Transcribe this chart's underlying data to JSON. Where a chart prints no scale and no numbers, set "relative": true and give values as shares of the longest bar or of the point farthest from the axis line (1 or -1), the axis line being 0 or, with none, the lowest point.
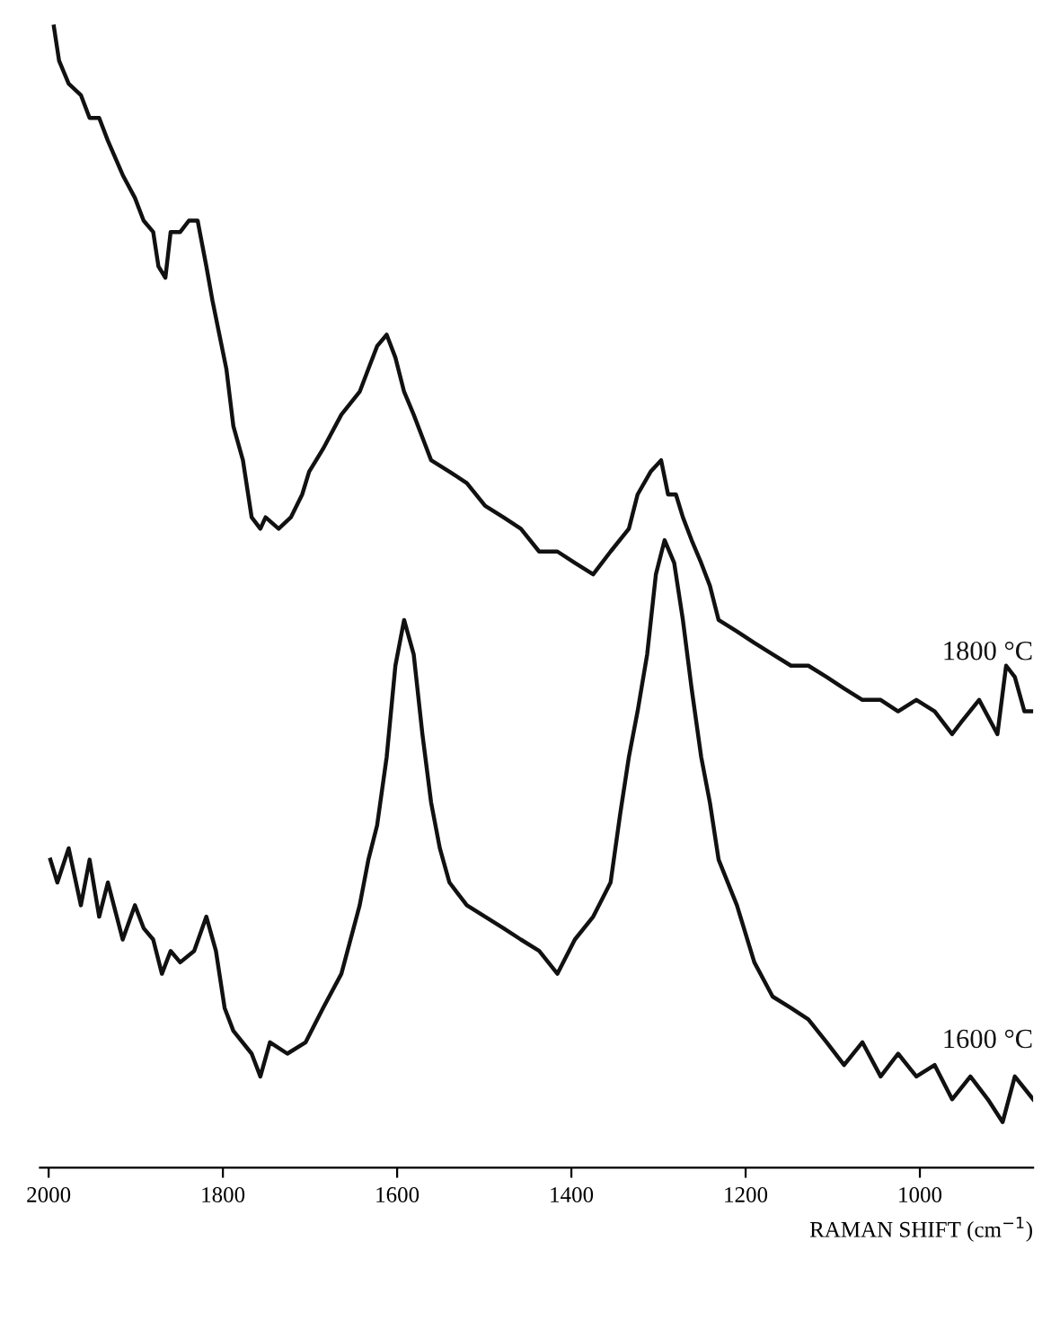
{
  "chart_data": {
    "type": "line",
    "relative": true,
    "xlabel": "RAMAN SHIFT (cm$^{−1}$)",
    "xlim": [
      2010,
      870
    ],
    "xticks": [
      2000,
      1800,
      1600,
      1400,
      1200,
      1000
    ],
    "tick_labels": "x",
    "grid": false,
    "legend": false,
    "marker": "none",
    "line_style": "solid",
    "series": [
      {
        "name": "1800 °C",
        "color": "#111111",
        "x": [
          1994,
          1988,
          1977,
          1963,
          1953,
          1942,
          1932,
          1915,
          1901,
          1891,
          1880,
          1874,
          1866,
          1860,
          1849,
          1839,
          1829,
          1819,
          1812,
          1804,
          1796,
          1788,
          1777,
          1767,
          1757,
          1751,
          1736,
          1722,
          1709,
          1701,
          1685,
          1664,
          1643,
          1633,
          1623,
          1612,
          1602,
          1592,
          1581,
          1571,
          1561,
          1540,
          1520,
          1499,
          1478,
          1458,
          1437,
          1416,
          1396,
          1375,
          1355,
          1334,
          1324,
          1309,
          1297,
          1289,
          1280,
          1272,
          1262,
          1251,
          1241,
          1231,
          1210,
          1190,
          1169,
          1148,
          1128,
          1107,
          1087,
          1066,
          1045,
          1025,
          1004,
          983,
          963,
          953,
          932,
          911,
          901,
          891,
          880,
          870
        ],
        "values": [
          1.0,
          0.97,
          0.95,
          0.94,
          0.92,
          0.92,
          0.9,
          0.87,
          0.85,
          0.83,
          0.82,
          0.79,
          0.78,
          0.82,
          0.82,
          0.83,
          0.83,
          0.79,
          0.76,
          0.73,
          0.7,
          0.65,
          0.62,
          0.57,
          0.56,
          0.57,
          0.56,
          0.57,
          0.59,
          0.61,
          0.63,
          0.66,
          0.68,
          0.7,
          0.72,
          0.73,
          0.71,
          0.68,
          0.66,
          0.64,
          0.62,
          0.61,
          0.6,
          0.58,
          0.57,
          0.56,
          0.54,
          0.54,
          0.53,
          0.52,
          0.54,
          0.56,
          0.59,
          0.61,
          0.62,
          0.59,
          0.59,
          0.57,
          0.55,
          0.53,
          0.51,
          0.48,
          0.47,
          0.46,
          0.45,
          0.44,
          0.44,
          0.43,
          0.42,
          0.41,
          0.41,
          0.4,
          0.41,
          0.4,
          0.38,
          0.39,
          0.41,
          0.38,
          0.44,
          0.43,
          0.4,
          0.4
        ]
      },
      {
        "name": "1600 °C",
        "color": "#111111",
        "x": [
          1998,
          1990,
          1977,
          1963,
          1953,
          1942,
          1932,
          1915,
          1901,
          1891,
          1880,
          1870,
          1860,
          1849,
          1833,
          1819,
          1808,
          1798,
          1788,
          1767,
          1757,
          1746,
          1726,
          1705,
          1685,
          1664,
          1643,
          1633,
          1623,
          1612,
          1602,
          1592,
          1581,
          1571,
          1561,
          1551,
          1540,
          1520,
          1499,
          1478,
          1458,
          1437,
          1416,
          1396,
          1375,
          1355,
          1344,
          1334,
          1324,
          1313,
          1303,
          1293,
          1282,
          1272,
          1262,
          1251,
          1241,
          1231,
          1210,
          1190,
          1169,
          1148,
          1128,
          1107,
          1087,
          1066,
          1045,
          1025,
          1004,
          983,
          963,
          942,
          922,
          905,
          891,
          870
        ],
        "values": [
          0.27,
          0.25,
          0.28,
          0.23,
          0.27,
          0.22,
          0.25,
          0.2,
          0.23,
          0.21,
          0.2,
          0.17,
          0.19,
          0.18,
          0.19,
          0.22,
          0.19,
          0.14,
          0.12,
          0.1,
          0.08,
          0.11,
          0.1,
          0.11,
          0.14,
          0.17,
          0.23,
          0.27,
          0.3,
          0.36,
          0.44,
          0.48,
          0.45,
          0.38,
          0.32,
          0.28,
          0.25,
          0.23,
          0.22,
          0.21,
          0.2,
          0.19,
          0.17,
          0.2,
          0.22,
          0.25,
          0.31,
          0.36,
          0.4,
          0.45,
          0.52,
          0.55,
          0.53,
          0.48,
          0.42,
          0.36,
          0.32,
          0.27,
          0.23,
          0.18,
          0.15,
          0.14,
          0.13,
          0.11,
          0.09,
          0.11,
          0.08,
          0.1,
          0.08,
          0.09,
          0.06,
          0.08,
          0.06,
          0.04,
          0.08,
          0.06
        ]
      }
    ]
  }
}
